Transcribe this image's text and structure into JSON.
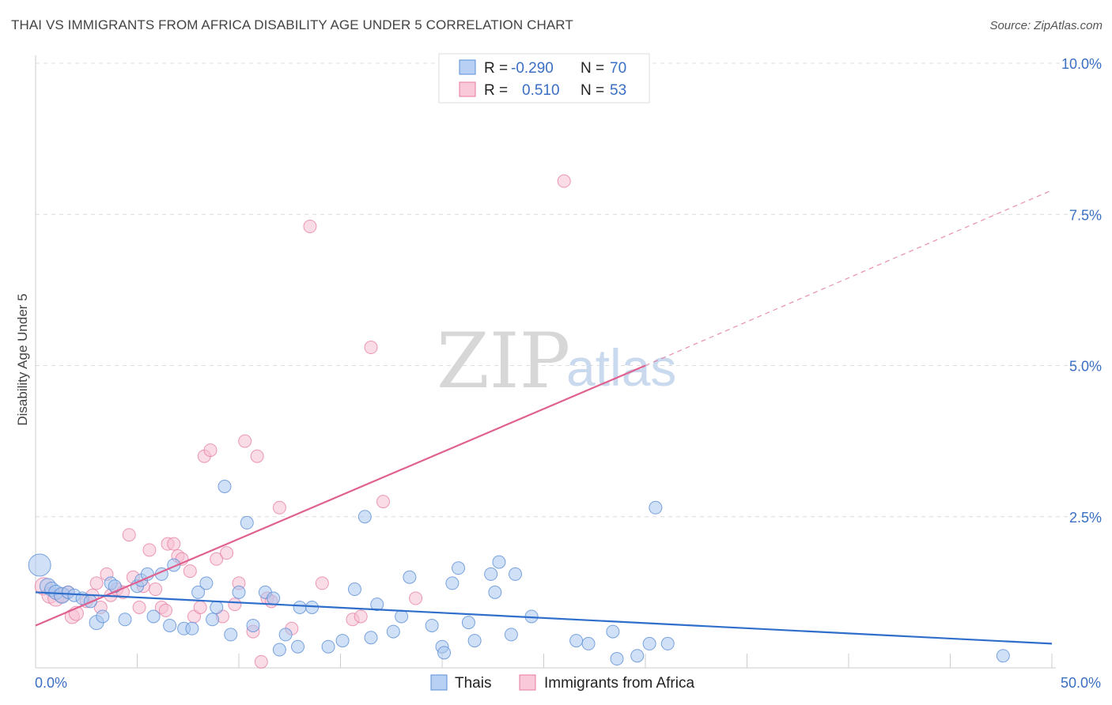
{
  "title": "THAI VS IMMIGRANTS FROM AFRICA DISABILITY AGE UNDER 5 CORRELATION CHART",
  "source": "Source: ZipAtlas.com",
  "watermark": {
    "zip": "ZIP",
    "atlas": "atlas"
  },
  "colors": {
    "blue": "#5b8fd6",
    "blue_fill": "#a9c6ef",
    "blue_line": "#2f6fcb",
    "pink": "#e67aa0",
    "pink_fill": "#f6bfd2",
    "pink_line": "#e0608f",
    "tick": "#3a6fc4"
  },
  "legend": {
    "rows": [
      {
        "r_label": "R =",
        "r_value": "-0.290",
        "n_label": "N =",
        "n_value": "70"
      },
      {
        "r_label": "R =",
        "r_value": "0.510",
        "n_label": "N =",
        "n_value": "53"
      }
    ]
  },
  "bottom_legend": [
    {
      "label": "Thais"
    },
    {
      "label": "Immigrants from Africa"
    }
  ],
  "chart_data": {
    "type": "scatter",
    "ylabel": "Disability Age Under 5",
    "xlim": [
      0,
      50
    ],
    "ylim": [
      0,
      10
    ],
    "x_tick_labels": [
      "0.0%",
      "50.0%"
    ],
    "y_tick_labels": [
      "2.5%",
      "5.0%",
      "7.5%",
      "10.0%"
    ],
    "y_ticks": [
      2.5,
      5.0,
      7.5,
      10.0
    ],
    "grid": "horizontal dashed",
    "legend_position": "top-center",
    "series": [
      {
        "name": "Thais",
        "trend": {
          "x0": 0,
          "y0": 1.25,
          "x1": 50,
          "y1": 0.4
        },
        "points": [
          [
            0.2,
            1.7,
            14
          ],
          [
            0.6,
            1.35,
            10
          ],
          [
            0.8,
            1.3,
            9
          ],
          [
            1.0,
            1.25,
            9
          ],
          [
            1.3,
            1.2,
            10
          ],
          [
            1.6,
            1.25,
            8
          ],
          [
            1.9,
            1.2,
            8
          ],
          [
            2.3,
            1.15,
            8
          ],
          [
            2.7,
            1.1,
            8
          ],
          [
            3.0,
            0.75,
            9
          ],
          [
            3.3,
            0.85,
            8
          ],
          [
            3.7,
            1.4,
            8
          ],
          [
            3.9,
            1.35,
            8
          ],
          [
            4.4,
            0.8,
            8
          ],
          [
            5.0,
            1.35,
            8
          ],
          [
            5.2,
            1.45,
            8
          ],
          [
            5.5,
            1.55,
            8
          ],
          [
            5.8,
            0.85,
            8
          ],
          [
            6.2,
            1.55,
            8
          ],
          [
            6.6,
            0.7,
            8
          ],
          [
            6.8,
            1.7,
            8
          ],
          [
            7.3,
            0.65,
            8
          ],
          [
            7.7,
            0.65,
            8
          ],
          [
            8.0,
            1.25,
            8
          ],
          [
            8.4,
            1.4,
            8
          ],
          [
            8.7,
            0.8,
            8
          ],
          [
            8.9,
            1.0,
            8
          ],
          [
            9.3,
            3.0,
            8
          ],
          [
            9.6,
            0.55,
            8
          ],
          [
            10.0,
            1.25,
            8
          ],
          [
            10.4,
            2.4,
            8
          ],
          [
            10.7,
            0.7,
            8
          ],
          [
            11.3,
            1.25,
            8
          ],
          [
            11.7,
            1.15,
            8
          ],
          [
            12.0,
            0.3,
            8
          ],
          [
            12.3,
            0.55,
            8
          ],
          [
            12.9,
            0.35,
            8
          ],
          [
            13.0,
            1.0,
            8
          ],
          [
            13.6,
            1.0,
            8
          ],
          [
            14.4,
            0.35,
            8
          ],
          [
            15.1,
            0.45,
            8
          ],
          [
            15.7,
            1.3,
            8
          ],
          [
            16.2,
            2.5,
            8
          ],
          [
            16.5,
            0.5,
            8
          ],
          [
            16.8,
            1.05,
            8
          ],
          [
            17.6,
            0.6,
            8
          ],
          [
            18.0,
            0.85,
            8
          ],
          [
            18.4,
            1.5,
            8
          ],
          [
            19.5,
            0.7,
            8
          ],
          [
            20.0,
            0.35,
            8
          ],
          [
            20.1,
            0.25,
            8
          ],
          [
            20.5,
            1.4,
            8
          ],
          [
            20.8,
            1.65,
            8
          ],
          [
            21.3,
            0.75,
            8
          ],
          [
            21.6,
            0.45,
            8
          ],
          [
            22.4,
            1.55,
            8
          ],
          [
            22.6,
            1.25,
            8
          ],
          [
            22.8,
            1.75,
            8
          ],
          [
            23.4,
            0.55,
            8
          ],
          [
            23.6,
            1.55,
            8
          ],
          [
            24.4,
            0.85,
            8
          ],
          [
            26.6,
            0.45,
            8
          ],
          [
            27.2,
            0.4,
            8
          ],
          [
            28.4,
            0.6,
            8
          ],
          [
            28.6,
            0.15,
            8
          ],
          [
            29.6,
            0.2,
            8
          ],
          [
            30.2,
            0.4,
            8
          ],
          [
            30.5,
            2.65,
            8
          ],
          [
            31.1,
            0.4,
            8
          ],
          [
            47.6,
            0.2,
            8
          ]
        ]
      },
      {
        "name": "Immigrants from Africa",
        "trend": {
          "x0": 0,
          "y0": 0.7,
          "x1": 30,
          "y1": 5.0,
          "dash_x1": 50,
          "dash_y1": 7.9
        },
        "points": [
          [
            0.4,
            1.35,
            11
          ],
          [
            0.7,
            1.2,
            10
          ],
          [
            1.0,
            1.15,
            10
          ],
          [
            1.3,
            1.2,
            9
          ],
          [
            1.6,
            1.25,
            8
          ],
          [
            1.8,
            0.85,
            9
          ],
          [
            2.0,
            0.9,
            9
          ],
          [
            2.5,
            1.1,
            8
          ],
          [
            2.8,
            1.2,
            8
          ],
          [
            3.0,
            1.4,
            8
          ],
          [
            3.2,
            1.0,
            8
          ],
          [
            3.5,
            1.55,
            8
          ],
          [
            3.7,
            1.2,
            8
          ],
          [
            4.0,
            1.3,
            8
          ],
          [
            4.3,
            1.25,
            8
          ],
          [
            4.6,
            2.2,
            8
          ],
          [
            4.8,
            1.5,
            8
          ],
          [
            5.1,
            1.0,
            8
          ],
          [
            5.3,
            1.35,
            8
          ],
          [
            5.6,
            1.95,
            8
          ],
          [
            5.9,
            1.3,
            8
          ],
          [
            6.2,
            1.0,
            8
          ],
          [
            6.4,
            0.95,
            8
          ],
          [
            6.5,
            2.05,
            8
          ],
          [
            6.8,
            2.05,
            8
          ],
          [
            7.0,
            1.85,
            8
          ],
          [
            7.2,
            1.8,
            8
          ],
          [
            7.6,
            1.6,
            8
          ],
          [
            7.8,
            0.85,
            8
          ],
          [
            8.1,
            1.0,
            8
          ],
          [
            8.3,
            3.5,
            8
          ],
          [
            8.6,
            3.6,
            8
          ],
          [
            8.9,
            1.8,
            8
          ],
          [
            9.2,
            0.85,
            8
          ],
          [
            9.4,
            1.9,
            8
          ],
          [
            9.8,
            1.05,
            8
          ],
          [
            10.0,
            1.4,
            8
          ],
          [
            10.3,
            3.75,
            8
          ],
          [
            10.7,
            0.6,
            8
          ],
          [
            10.9,
            3.5,
            8
          ],
          [
            11.1,
            0.1,
            8
          ],
          [
            11.4,
            1.15,
            8
          ],
          [
            11.6,
            1.1,
            8
          ],
          [
            12.0,
            2.65,
            8
          ],
          [
            13.5,
            7.3,
            8
          ],
          [
            14.1,
            1.4,
            8
          ],
          [
            15.6,
            0.8,
            8
          ],
          [
            16.0,
            0.85,
            8
          ],
          [
            16.5,
            5.3,
            8
          ],
          [
            17.1,
            2.75,
            8
          ],
          [
            18.7,
            1.15,
            8
          ],
          [
            26.0,
            8.05,
            8
          ],
          [
            12.6,
            0.65,
            8
          ]
        ]
      }
    ]
  }
}
